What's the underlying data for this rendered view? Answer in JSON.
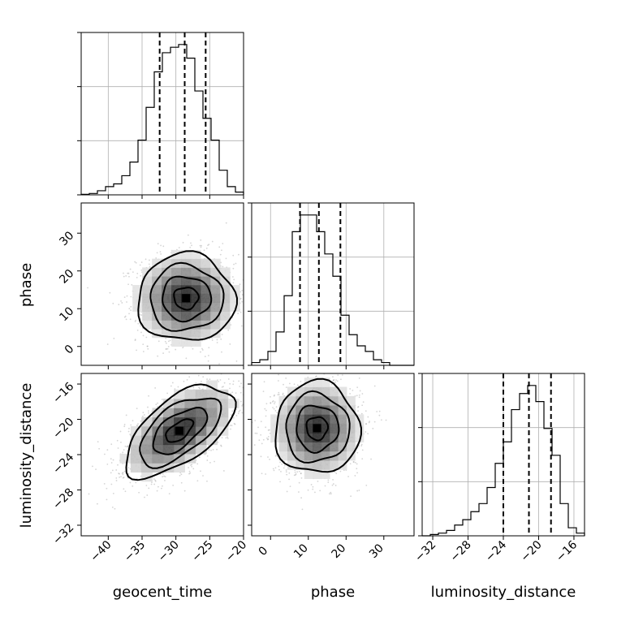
{
  "chart_data": {
    "type": "corner",
    "parameters": [
      "geocent_time",
      "phase",
      "luminosity_distance"
    ],
    "axis_labels": [
      "geocent_time",
      "phase",
      "luminosity_distance"
    ],
    "ranges": {
      "geocent_time": [
        -44,
        -20
      ],
      "phase": [
        -5,
        38
      ],
      "luminosity_distance": [
        -33.2,
        -14.8
      ]
    },
    "ticks": {
      "geocent_time": [
        "−40",
        "−35",
        "−30",
        "−25",
        "−20"
      ],
      "phase": [
        "0",
        "10",
        "20",
        "30"
      ],
      "luminosity_distance": [
        "−32",
        "−28",
        "−24",
        "−20",
        "−16"
      ]
    },
    "tick_values": {
      "geocent_time": [
        -40,
        -35,
        -30,
        -25,
        -20
      ],
      "phase": [
        0,
        10,
        20,
        30
      ],
      "luminosity_distance": [
        -32,
        -28,
        -24,
        -20,
        -16
      ]
    },
    "quantiles": {
      "geocent_time": [
        -32.4,
        -28.7,
        -25.6
      ],
      "phase": [
        7.8,
        12.8,
        18.5
      ],
      "luminosity_distance": [
        -24.0,
        -21.1,
        -18.6
      ]
    },
    "histograms": {
      "geocent_time": {
        "bin_edges": [
          -44,
          -42.8,
          -41.6,
          -40.4,
          -39.2,
          -38,
          -36.8,
          -35.6,
          -34.4,
          -33.2,
          -32,
          -30.8,
          -29.6,
          -28.4,
          -27.2,
          -26,
          -24.8,
          -23.6,
          -22.4,
          -21.2,
          -20
        ],
        "counts": [
          0.2,
          0.5,
          1.5,
          3,
          4,
          7,
          12,
          20,
          32,
          45,
          52,
          54,
          55,
          50,
          38,
          28,
          20,
          9,
          3,
          1
        ]
      },
      "phase": {
        "bin_edges": [
          -5,
          -2.85,
          -0.7,
          1.45,
          3.6,
          5.75,
          7.9,
          10.05,
          12.2,
          14.35,
          16.5,
          18.65,
          20.8,
          22.95,
          25.1,
          27.25,
          29.4,
          31.55,
          33.7,
          35.85,
          38
        ],
        "counts": [
          1,
          2,
          5,
          12,
          25,
          48,
          54,
          54,
          48,
          40,
          32,
          18,
          11,
          7,
          5,
          2,
          1,
          0,
          0,
          0
        ]
      },
      "luminosity_distance": {
        "bin_edges": [
          -33.2,
          -32.28,
          -31.36,
          -30.44,
          -29.52,
          -28.6,
          -27.68,
          -26.76,
          -25.84,
          -24.92,
          -24,
          -23.08,
          -22.16,
          -21.24,
          -20.32,
          -19.4,
          -18.48,
          -17.56,
          -16.64,
          -15.72,
          -14.8
        ],
        "counts": [
          0,
          0.5,
          1,
          2,
          4,
          6,
          9,
          12,
          18,
          27,
          35,
          47,
          53,
          56,
          50,
          40,
          30,
          12,
          3,
          1
        ]
      }
    },
    "joint_2d": [
      {
        "x": "geocent_time",
        "y": "phase",
        "center": [
          -28.5,
          12.8
        ],
        "sigma": [
          3.6,
          5.8
        ],
        "correlation": 0.0
      },
      {
        "x": "geocent_time",
        "y": "luminosity_distance",
        "center": [
          -29.5,
          -21.3
        ],
        "sigma": [
          4.0,
          2.6
        ],
        "correlation": 0.6
      },
      {
        "x": "phase",
        "y": "luminosity_distance",
        "center": [
          12.3,
          -21.0
        ],
        "sigma": [
          5.6,
          2.6
        ],
        "correlation": 0.0
      }
    ],
    "contour_levels_sigma": [
      0.5,
      1.0,
      1.5,
      2.0
    ],
    "grid": true
  }
}
